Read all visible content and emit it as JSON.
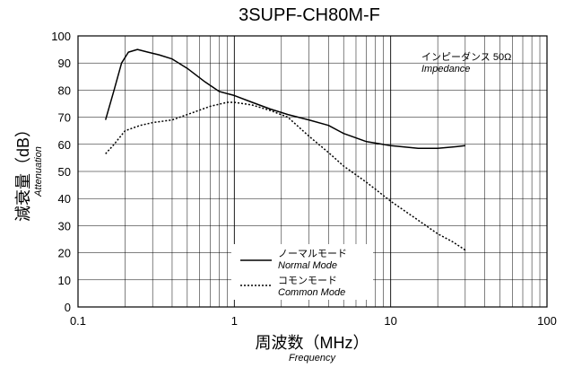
{
  "chart_data": {
    "type": "line",
    "title": "3SUPF-CH80M-F",
    "xlabel": "周波数（MHz）",
    "xlabel_sub": "Frequency",
    "ylabel": "減衰量（dB）",
    "ylabel_sub": "Attenuation",
    "xscale": "log",
    "xlim": [
      0.1,
      100
    ],
    "ylim": [
      0,
      100
    ],
    "grid": true,
    "x_tick_labels": [
      "0.1",
      "1",
      "10",
      "100"
    ],
    "y_tick_labels": [
      "0",
      "10",
      "20",
      "30",
      "40",
      "50",
      "60",
      "70",
      "80",
      "90",
      "100"
    ],
    "annotation": {
      "line1": "インピーダンス 50Ω",
      "line2": "Impedance"
    },
    "legend_position": "bottom-center",
    "series": [
      {
        "name": "ノーマルモード",
        "name_sub": "Normal Mode",
        "style": "solid",
        "x": [
          0.15,
          0.17,
          0.19,
          0.21,
          0.24,
          0.28,
          0.33,
          0.4,
          0.5,
          0.65,
          0.8,
          1.0,
          1.3,
          1.7,
          2.2,
          3,
          4,
          5,
          7,
          10,
          15,
          20,
          25,
          30
        ],
        "y": [
          69,
          80,
          90,
          94,
          95,
          94,
          93,
          91.5,
          88,
          83,
          79.5,
          78,
          75.5,
          73,
          71,
          69,
          67,
          64,
          61,
          59.5,
          58.5,
          58.5,
          59,
          59.5
        ]
      },
      {
        "name": "コモンモード",
        "name_sub": "Common Mode",
        "style": "dotted",
        "x": [
          0.15,
          0.17,
          0.2,
          0.25,
          0.3,
          0.4,
          0.5,
          0.7,
          0.9,
          1.0,
          1.3,
          1.7,
          2.2,
          3,
          4,
          5,
          7,
          10,
          15,
          20,
          25,
          30
        ],
        "y": [
          56.5,
          60,
          65,
          67,
          68,
          69,
          71,
          74,
          75.5,
          75.5,
          74.5,
          72.5,
          70,
          63,
          57,
          52,
          46,
          39,
          32,
          27,
          24,
          21
        ]
      }
    ]
  }
}
